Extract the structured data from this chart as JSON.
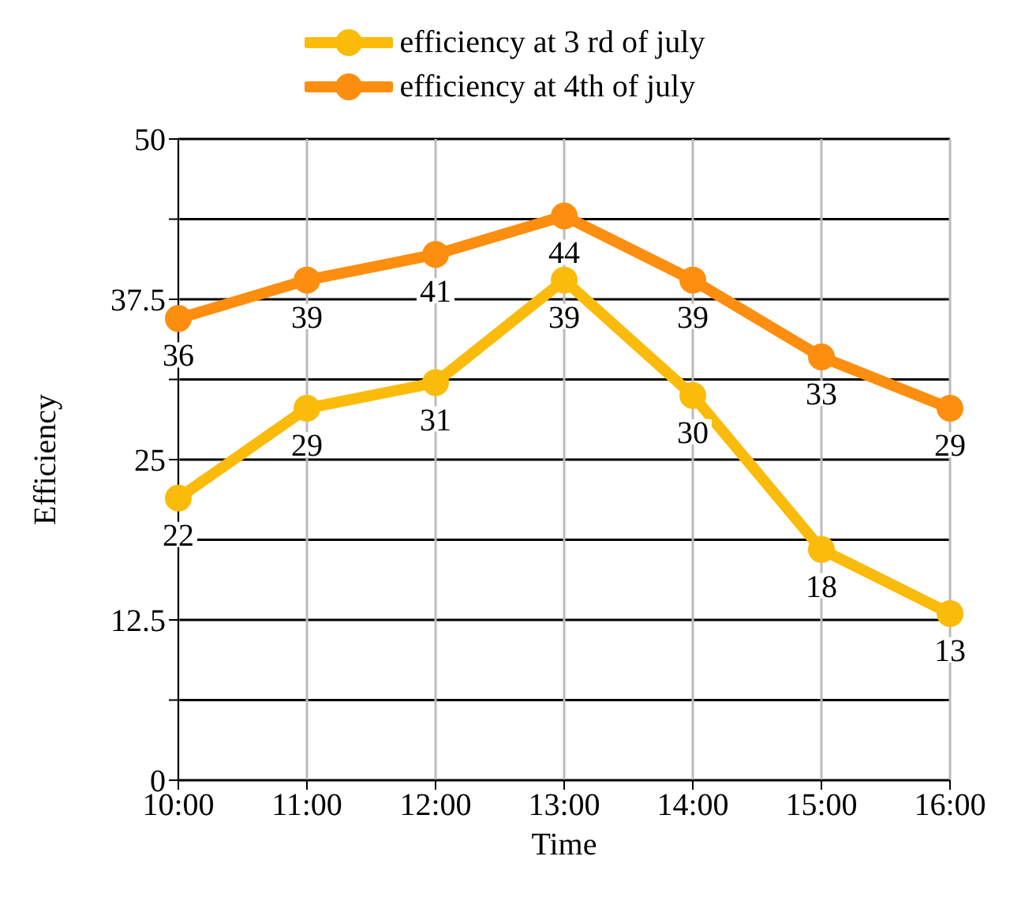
{
  "chart_data": {
    "type": "line",
    "xlabel": "Time",
    "ylabel": "Efficiency",
    "categories": [
      "10:00",
      "11:00",
      "12:00",
      "13:00",
      "14:00",
      "15:00",
      "16:00"
    ],
    "series": [
      {
        "name": "efficiency at 3 rd of july",
        "color": "#fbbb0a",
        "values": [
          22,
          29,
          31,
          39,
          30,
          18,
          13
        ]
      },
      {
        "name": "efficiency at 4th of july",
        "color": "#fd8e0f",
        "values": [
          36,
          39,
          41,
          44,
          39,
          33,
          29
        ]
      }
    ],
    "ylim": [
      0,
      50
    ],
    "yticks": [
      0,
      {
        "value": 6.25,
        "label": null
      },
      12.5,
      {
        "value": 18.75,
        "label": null
      },
      25,
      {
        "value": 31.25,
        "label": null
      },
      37.5,
      {
        "value": 43.75,
        "label": null
      },
      50
    ],
    "grid": true,
    "legend": "top",
    "marker": "circle",
    "line_style": "solid",
    "data_labels": true
  }
}
